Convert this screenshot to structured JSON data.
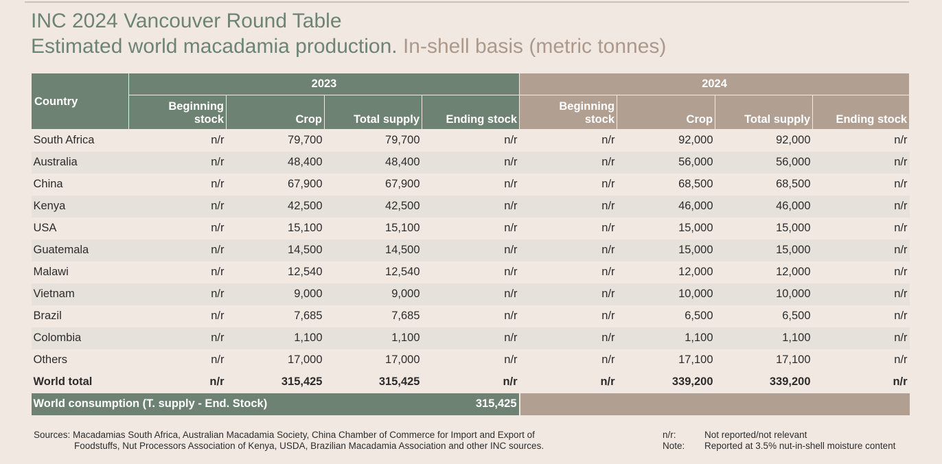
{
  "header": {
    "title": "INC 2024 Vancouver Round Table",
    "subtitle_main": "Estimated world macadamia production.",
    "subtitle_unit": "In-shell basis (metric tonnes)"
  },
  "table": {
    "country_header": "Country",
    "year_2023": "2023",
    "year_2024": "2024",
    "col_headers": {
      "beginning_line1": "Beginning",
      "beginning_line2": "stock",
      "crop": "Crop",
      "total_supply": "Total supply",
      "ending_stock": "Ending stock"
    },
    "rows": [
      {
        "country": "South Africa",
        "y2023": [
          "n/r",
          "79,700",
          "79,700",
          "n/r"
        ],
        "y2024": [
          "n/r",
          "92,000",
          "92,000",
          "n/r"
        ]
      },
      {
        "country": "Australia",
        "y2023": [
          "n/r",
          "48,400",
          "48,400",
          "n/r"
        ],
        "y2024": [
          "n/r",
          "56,000",
          "56,000",
          "n/r"
        ]
      },
      {
        "country": "China",
        "y2023": [
          "n/r",
          "67,900",
          "67,900",
          "n/r"
        ],
        "y2024": [
          "n/r",
          "68,500",
          "68,500",
          "n/r"
        ]
      },
      {
        "country": "Kenya",
        "y2023": [
          "n/r",
          "42,500",
          "42,500",
          "n/r"
        ],
        "y2024": [
          "n/r",
          "46,000",
          "46,000",
          "n/r"
        ]
      },
      {
        "country": "USA",
        "y2023": [
          "n/r",
          "15,100",
          "15,100",
          "n/r"
        ],
        "y2024": [
          "n/r",
          "15,000",
          "15,000",
          "n/r"
        ]
      },
      {
        "country": "Guatemala",
        "y2023": [
          "n/r",
          "14,500",
          "14,500",
          "n/r"
        ],
        "y2024": [
          "n/r",
          "15,000",
          "15,000",
          "n/r"
        ]
      },
      {
        "country": "Malawi",
        "y2023": [
          "n/r",
          "12,540",
          "12,540",
          "n/r"
        ],
        "y2024": [
          "n/r",
          "12,000",
          "12,000",
          "n/r"
        ]
      },
      {
        "country": "Vietnam",
        "y2023": [
          "n/r",
          "9,000",
          "9,000",
          "n/r"
        ],
        "y2024": [
          "n/r",
          "10,000",
          "10,000",
          "n/r"
        ]
      },
      {
        "country": "Brazil",
        "y2023": [
          "n/r",
          "7,685",
          "7,685",
          "n/r"
        ],
        "y2024": [
          "n/r",
          "6,500",
          "6,500",
          "n/r"
        ]
      },
      {
        "country": "Colombia",
        "y2023": [
          "n/r",
          "1,100",
          "1,100",
          "n/r"
        ],
        "y2024": [
          "n/r",
          "1,100",
          "1,100",
          "n/r"
        ]
      },
      {
        "country": "Others",
        "y2023": [
          "n/r",
          "17,000",
          "17,000",
          "n/r"
        ],
        "y2024": [
          "n/r",
          "17,100",
          "17,100",
          "n/r"
        ]
      },
      {
        "country": "World total",
        "y2023": [
          "n/r",
          "315,425",
          "315,425",
          "n/r"
        ],
        "y2024": [
          "n/r",
          "339,200",
          "339,200",
          "n/r"
        ]
      }
    ],
    "consumption": {
      "label": "World consumption  (T. supply - End. Stock)",
      "value_2023": "315,425"
    }
  },
  "footer": {
    "sources_line1": "Sources: Macadamias South Africa, Australian Macadamia Society, China Chamber of Commerce for Import and Export of",
    "sources_line2": "Foodstuffs, Nut Processors Association of Kenya, USDA, Brazilian Macadamia Association and other INC sources.",
    "notes": [
      {
        "key": "n/r:",
        "text": "Not reported/not relevant"
      },
      {
        "key": "Note:",
        "text": "Reported at 3.5% nut-in-shell moisture content"
      }
    ]
  },
  "colors": {
    "green_2023": "#6d8273",
    "taupe_2024": "#b19f92",
    "background": "#f1e8e2",
    "title_green": "#6c8474"
  }
}
